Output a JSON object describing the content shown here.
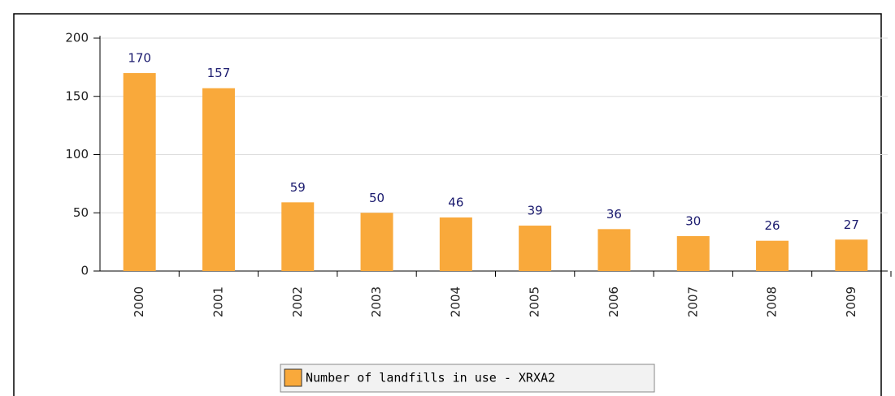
{
  "chart_data": {
    "type": "bar",
    "categories": [
      "2000",
      "2001",
      "2002",
      "2003",
      "2004",
      "2005",
      "2006",
      "2007",
      "2008",
      "2009"
    ],
    "series": [
      {
        "name": "Number of landfills in use - XRXA2",
        "color": "#f9a93b",
        "values": [
          170,
          157,
          59,
          50,
          46,
          39,
          36,
          30,
          26,
          27
        ]
      }
    ],
    "ylim": [
      0,
      200
    ],
    "yticks": [
      0,
      50,
      100,
      150,
      200
    ],
    "grid": true
  }
}
